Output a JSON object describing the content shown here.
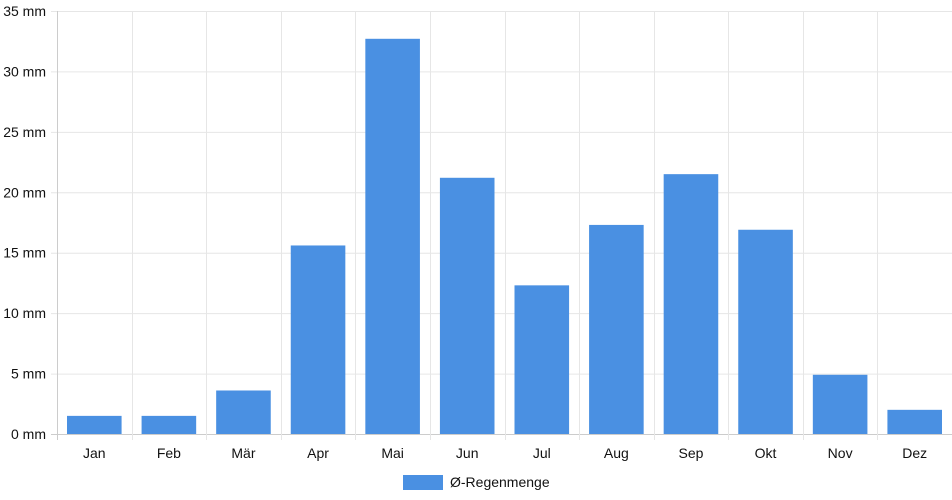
{
  "chart_data": {
    "type": "bar",
    "categories": [
      "Jan",
      "Feb",
      "Mär",
      "Apr",
      "Mai",
      "Jun",
      "Jul",
      "Aug",
      "Sep",
      "Okt",
      "Nov",
      "Dez"
    ],
    "series": [
      {
        "name": "Ø-Regenmenge",
        "values": [
          1.5,
          1.5,
          3.6,
          15.6,
          32.7,
          21.2,
          12.3,
          17.3,
          21.5,
          16.9,
          4.9,
          2.0
        ],
        "color": "#4a90e2"
      }
    ],
    "y_ticks": [
      "0 mm",
      "5 mm",
      "10 mm",
      "15 mm",
      "20 mm",
      "25 mm",
      "30 mm",
      "35 mm"
    ],
    "ylim": [
      0,
      35
    ],
    "y_step": 5,
    "y_unit": "mm",
    "grid": true,
    "legend_position": "bottom-center",
    "grid_color": "#e6e6e6",
    "axis_color": "#cccccc"
  }
}
